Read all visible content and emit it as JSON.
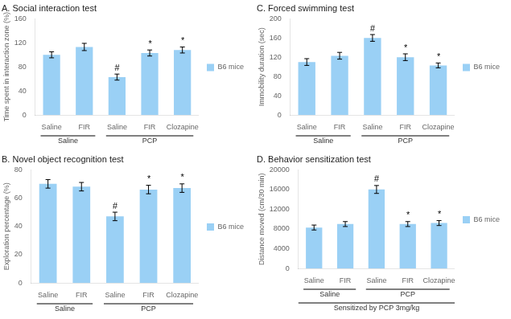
{
  "chart_data": [
    {
      "type": "bar",
      "title": "A. Social interaction test",
      "y_label": "Time spent in interaction zone (%)",
      "categories": [
        "Saline",
        "FIR",
        "Saline",
        "FIR",
        "Clozapine"
      ],
      "series": [
        {
          "name": "B6 mice",
          "values": [
            100,
            113,
            63,
            103,
            108
          ],
          "errors": [
            5,
            6,
            5,
            5,
            5
          ]
        }
      ],
      "annotations": [
        null,
        null,
        "#",
        "*",
        "*"
      ],
      "groups": [
        {
          "label": "Saline",
          "from": 0,
          "to": 1
        },
        {
          "label": "PCP",
          "from": 2,
          "to": 4
        }
      ],
      "ylim": [
        0,
        160
      ],
      "yticks": [
        0,
        40,
        80,
        120,
        160
      ],
      "grid": false,
      "legend": "right"
    },
    {
      "type": "bar",
      "title": "B. Novel object recognition test",
      "y_label": "Exploration percentage (%)",
      "categories": [
        "Saline",
        "FIR",
        "Saline",
        "FIR",
        "Clozapine"
      ],
      "series": [
        {
          "name": "B6 mice",
          "values": [
            70,
            68,
            47,
            66,
            67
          ],
          "errors": [
            3,
            3,
            3,
            3,
            3
          ]
        }
      ],
      "annotations": [
        null,
        null,
        "#",
        "*",
        "*"
      ],
      "groups": [
        {
          "label": "Saline",
          "from": 0,
          "to": 1
        },
        {
          "label": "PCP",
          "from": 2,
          "to": 4
        }
      ],
      "ylim": [
        0,
        80
      ],
      "yticks": [
        0,
        20,
        40,
        60,
        80
      ],
      "grid": false,
      "legend": "right"
    },
    {
      "type": "bar",
      "title": "C. Forced swimming test",
      "y_label": "Immobility duration (sec)",
      "categories": [
        "Saline",
        "FIR",
        "Saline",
        "FIR",
        "Clozapine"
      ],
      "series": [
        {
          "name": "B6 mice",
          "values": [
            110,
            123,
            160,
            120,
            103
          ],
          "errors": [
            7,
            7,
            7,
            7,
            5
          ]
        }
      ],
      "annotations": [
        null,
        null,
        "#",
        "*",
        "*"
      ],
      "groups": [
        {
          "label": "Saline",
          "from": 0,
          "to": 1
        },
        {
          "label": "PCP",
          "from": 2,
          "to": 4
        }
      ],
      "ylim": [
        0,
        200
      ],
      "yticks": [
        0,
        40,
        80,
        120,
        160,
        200
      ],
      "grid": false,
      "legend": "right"
    },
    {
      "type": "bar",
      "title": "D. Behavior sensitization test",
      "y_label": "Distance moved (cm/30 min)",
      "categories": [
        "Saline",
        "FIR",
        "Saline",
        "FIR",
        "Clozapine"
      ],
      "series": [
        {
          "name": "B6 mice",
          "values": [
            8300,
            9000,
            16000,
            9000,
            9200
          ],
          "errors": [
            500,
            500,
            800,
            500,
            500
          ]
        }
      ],
      "annotations": [
        null,
        null,
        "#",
        "*",
        "*"
      ],
      "groups": [
        {
          "label": "Saline",
          "from": 0,
          "to": 1
        },
        {
          "label": "PCP",
          "from": 2,
          "to": 4
        }
      ],
      "bottom_label": "Sensitized by PCP 3mg/kg",
      "ylim": [
        0,
        20000
      ],
      "yticks": [
        0,
        4000,
        8000,
        12000,
        16000,
        20000
      ],
      "grid": false,
      "legend": "right"
    }
  ]
}
